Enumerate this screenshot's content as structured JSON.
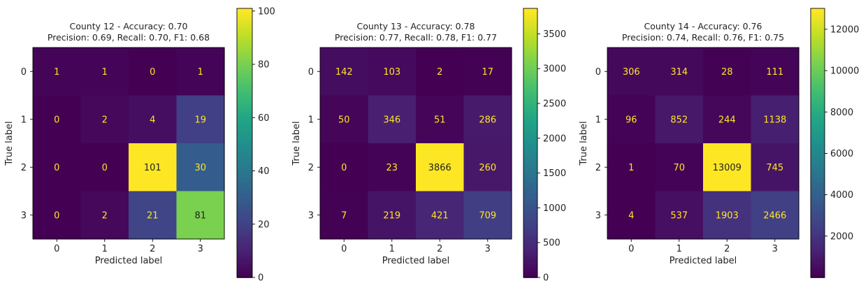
{
  "chart_data": [
    {
      "type": "heatmap",
      "title_line1": "County 12 - Accuracy: 0.70",
      "title_line2": "Precision: 0.69, Recall: 0.70, F1: 0.68",
      "xlabel": "Predicted label",
      "ylabel": "True label",
      "x_ticks": [
        "0",
        "1",
        "2",
        "3"
      ],
      "y_ticks": [
        "0",
        "1",
        "2",
        "3"
      ],
      "matrix": [
        [
          1,
          1,
          0,
          1
        ],
        [
          0,
          2,
          4,
          19
        ],
        [
          0,
          0,
          101,
          30
        ],
        [
          0,
          2,
          21,
          81
        ]
      ],
      "colorbar": {
        "min": 0,
        "max": 101,
        "ticks": [
          0,
          20,
          40,
          60,
          80,
          100
        ]
      },
      "colormap": "viridis"
    },
    {
      "type": "heatmap",
      "title_line1": "County 13 - Accuracy: 0.78",
      "title_line2": "Precision: 0.77, Recall: 0.78, F1: 0.77",
      "xlabel": "Predicted label",
      "ylabel": "True label",
      "x_ticks": [
        "0",
        "1",
        "2",
        "3"
      ],
      "y_ticks": [
        "0",
        "1",
        "2",
        "3"
      ],
      "matrix": [
        [
          142,
          103,
          2,
          17
        ],
        [
          50,
          346,
          51,
          286
        ],
        [
          0,
          23,
          3866,
          260
        ],
        [
          7,
          219,
          421,
          709
        ]
      ],
      "colorbar": {
        "min": 0,
        "max": 3866,
        "ticks": [
          0,
          500,
          1000,
          1500,
          2000,
          2500,
          3000,
          3500
        ]
      },
      "colormap": "viridis"
    },
    {
      "type": "heatmap",
      "title_line1": "County 14 - Accuracy: 0.76",
      "title_line2": "Precision: 0.74, Recall: 0.76, F1: 0.75",
      "xlabel": "Predicted label",
      "ylabel": "True label",
      "x_ticks": [
        "0",
        "1",
        "2",
        "3"
      ],
      "y_ticks": [
        "0",
        "1",
        "2",
        "3"
      ],
      "matrix": [
        [
          306,
          314,
          28,
          111
        ],
        [
          96,
          852,
          244,
          1138
        ],
        [
          1,
          70,
          13009,
          745
        ],
        [
          4,
          537,
          1903,
          2466
        ]
      ],
      "colorbar": {
        "min": 1,
        "max": 13009,
        "ticks": [
          2000,
          4000,
          6000,
          8000,
          10000,
          12000
        ]
      },
      "colormap": "viridis"
    }
  ]
}
